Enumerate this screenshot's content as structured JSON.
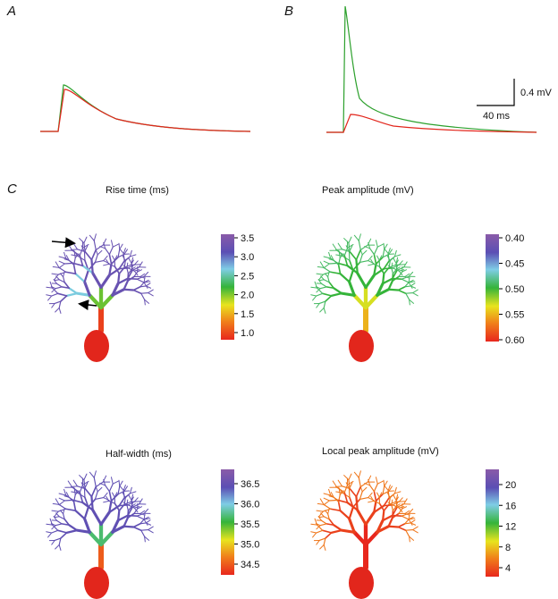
{
  "panels": {
    "a": {
      "label": "A"
    },
    "b": {
      "label": "B",
      "scale_voltage": "0.4 mV",
      "scale_time": "40 ms"
    },
    "c": {
      "label": "C",
      "maps": [
        {
          "title": "Rise time (ms)",
          "colorbar_ticks": [
            "3.5",
            "3.0",
            "2.5",
            "2.0",
            "1.5",
            "1.0"
          ]
        },
        {
          "title": "Peak amplitude (mV)",
          "colorbar_ticks": [
            "0.40",
            "0.45",
            "0.50",
            "0.55",
            "0.60"
          ]
        },
        {
          "title": "Half-width (ms)",
          "colorbar_ticks": [
            "36.5",
            "36.0",
            "35.5",
            "35.0",
            "34.5"
          ]
        },
        {
          "title": "Local peak amplitude (mV)",
          "colorbar_ticks": [
            "20",
            "16",
            "12",
            "8",
            "4"
          ]
        }
      ]
    }
  }
}
